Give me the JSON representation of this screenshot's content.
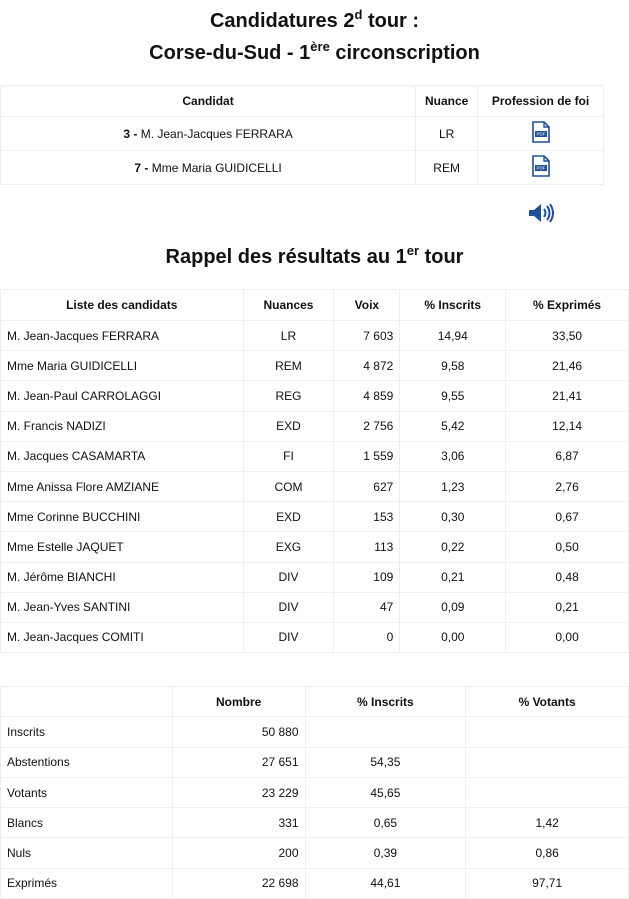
{
  "title": {
    "line1_pre": "Candidatures 2",
    "line1_sup": "d",
    "line1_post": " tour :",
    "line2_pre": "Corse-du-Sud - 1",
    "line2_sup": "ère",
    "line2_post": " circonscription"
  },
  "second_round": {
    "headers": [
      "Candidat",
      "Nuance",
      "Profession de foi"
    ],
    "rows": [
      {
        "num": "3 -",
        "name": " M. Jean-Jacques FERRARA",
        "nuance": "LR",
        "icon": "pdf-icon"
      },
      {
        "num": "7 -",
        "name": " Mme Maria GUIDICELLI",
        "nuance": "REM",
        "icon": "pdf-icon"
      }
    ],
    "audio_icon": "speaker-icon",
    "accent": "#1f4e9c"
  },
  "results_title": {
    "pre": "Rappel des résultats au 1",
    "sup": "er",
    "post": " tour"
  },
  "first_round": {
    "headers": [
      "Liste des candidats",
      "Nuances",
      "Voix",
      "% Inscrits",
      "% Exprimés"
    ],
    "rows": [
      [
        "M. Jean-Jacques FERRARA",
        "LR",
        "7 603",
        "14,94",
        "33,50"
      ],
      [
        "Mme Maria GUIDICELLI",
        "REM",
        "4 872",
        "9,58",
        "21,46"
      ],
      [
        "M. Jean-Paul CARROLAGGI",
        "REG",
        "4 859",
        "9,55",
        "21,41"
      ],
      [
        "M. Francis NADIZI",
        "EXD",
        "2 756",
        "5,42",
        "12,14"
      ],
      [
        "M. Jacques CASAMARTA",
        "FI",
        "1 559",
        "3,06",
        "6,87"
      ],
      [
        "Mme Anissa Flore AMZIANE",
        "COM",
        "627",
        "1,23",
        "2,76"
      ],
      [
        "Mme Corinne BUCCHINI",
        "EXD",
        "153",
        "0,30",
        "0,67"
      ],
      [
        "Mme Estelle JAQUET",
        "EXG",
        "113",
        "0,22",
        "0,50"
      ],
      [
        "M. Jérôme BIANCHI",
        "DIV",
        "109",
        "0,21",
        "0,48"
      ],
      [
        "M. Jean-Yves SANTINI",
        "DIV",
        "47",
        "0,09",
        "0,21"
      ],
      [
        "M. Jean-Jacques COMITI",
        "DIV",
        "0",
        "0,00",
        "0,00"
      ]
    ]
  },
  "participation": {
    "headers": [
      "",
      "Nombre",
      "% Inscrits",
      "% Votants"
    ],
    "rows": [
      [
        "Inscrits",
        "50 880",
        "",
        ""
      ],
      [
        "Abstentions",
        "27 651",
        "54,35",
        ""
      ],
      [
        "Votants",
        "23 229",
        "45,65",
        ""
      ],
      [
        "Blancs",
        "331",
        "0,65",
        "1,42"
      ],
      [
        "Nuls",
        "200",
        "0,39",
        "0,86"
      ],
      [
        "Exprimés",
        "22 698",
        "44,61",
        "97,71"
      ]
    ]
  }
}
